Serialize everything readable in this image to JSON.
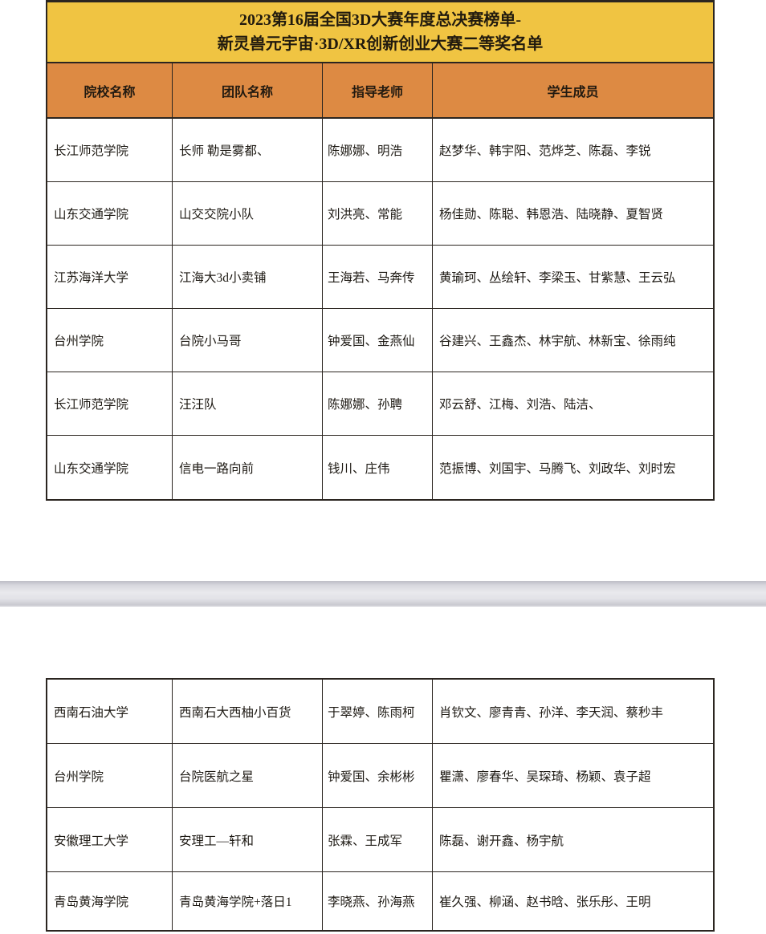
{
  "document": {
    "title_line1": "2023第16届全国3D大赛年度总决赛榜单-",
    "title_line2": "新灵兽元宇宙·3D/XR创新创业大赛二等奖名单"
  },
  "table": {
    "columns": [
      "院校名称",
      "团队名称",
      "指导老师",
      "学生成员"
    ]
  },
  "page1_rows": [
    [
      "长江师范学院",
      "长师 勒是雾都、",
      "陈娜娜、明浩",
      "赵梦华、韩宇阳、范烨芝、陈磊、李锐"
    ],
    [
      "山东交通学院",
      "山交交院小队",
      "刘洪亮、常能",
      "杨佳勋、陈聪、韩恩浩、陆晓静、夏智贤"
    ],
    [
      "江苏海洋大学",
      "江海大3d小卖铺",
      "王海若、马奔传",
      "黄瑜珂、丛绘轩、李梁玉、甘紫慧、王云弘"
    ],
    [
      "台州学院",
      "台院小马哥",
      "钟爱国、金燕仙",
      "谷建兴、王鑫杰、林宇航、林新宝、徐雨纯"
    ],
    [
      "长江师范学院",
      "汪汪队",
      "陈娜娜、孙聘",
      "邓云舒、江梅、刘浩、陆洁、"
    ],
    [
      "山东交通学院",
      "信电一路向前",
      "钱川、庄伟",
      "范振博、刘国宇、马腾飞、刘政华、刘时宏"
    ]
  ],
  "page2_rows": [
    [
      "西南石油大学",
      "西南石大西柚小百货",
      "于翠婷、陈雨柯",
      "肖钦文、廖青青、孙洋、李天润、蔡秒丰"
    ],
    [
      "台州学院",
      "台院医航之星",
      "钟爱国、余彬彬",
      "瞿潇、廖春华、吴琛琦、杨颖、袁子超"
    ],
    [
      "安徽理工大学",
      "安理工—轩和",
      "张霖、王成军",
      "陈磊、谢开鑫、杨宇航"
    ],
    [
      "青岛黄海学院",
      "青岛黄海学院+落日1",
      "李晓燕、孙海燕",
      "崔久强、柳涵、赵书晗、张乐彤、王明"
    ]
  ],
  "colors": {
    "title-bg": "#F0C442",
    "header-bg": "#DD8A43",
    "table-border": "#2B2520",
    "page-gap-mid": "#E4E4E9"
  }
}
